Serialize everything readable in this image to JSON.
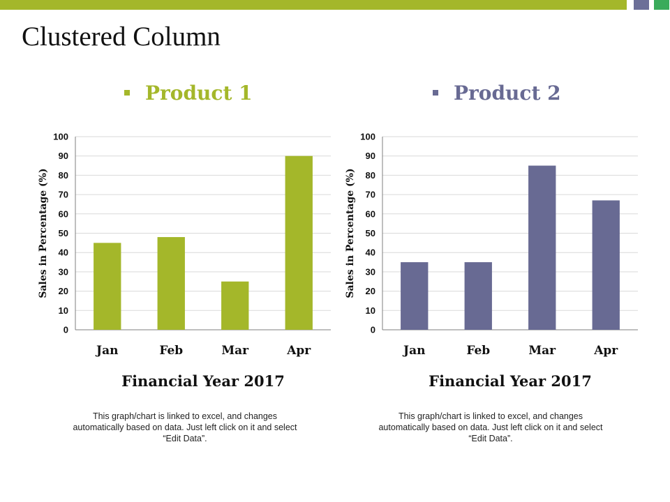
{
  "theme": {
    "product1_color": "#a4b72a",
    "product2_color": "#686a93",
    "accent_square_1": "#6c6f98",
    "accent_square_2": "#3aab5b",
    "top_bar_color": "#a4b72a"
  },
  "page": {
    "title": "Clustered Column"
  },
  "chart_data": [
    {
      "type": "bar",
      "legend": "Product 1",
      "categories": [
        "Jan",
        "Feb",
        "Mar",
        "Apr"
      ],
      "series": [
        {
          "name": "Product 1",
          "values": [
            45,
            48,
            25,
            90
          ]
        }
      ],
      "xlabel": "Financial Year 2017",
      "ylabel": "Sales in Percentage (%)",
      "ylim": [
        0,
        100
      ],
      "yticks": [
        0,
        10,
        20,
        30,
        40,
        50,
        60,
        70,
        80,
        90,
        100
      ],
      "grid": true,
      "note": "This graph/chart is linked to excel, and changes automatically based on data. Just left click on it and select “Edit Data”."
    },
    {
      "type": "bar",
      "legend": "Product 2",
      "categories": [
        "Jan",
        "Feb",
        "Mar",
        "Apr"
      ],
      "series": [
        {
          "name": "Product 2",
          "values": [
            35,
            35,
            85,
            67
          ]
        }
      ],
      "xlabel": "Financial Year 2017",
      "ylabel": "Sales in Percentage (%)",
      "ylim": [
        0,
        100
      ],
      "yticks": [
        0,
        10,
        20,
        30,
        40,
        50,
        60,
        70,
        80,
        90,
        100
      ],
      "grid": true,
      "note": "This graph/chart is linked to excel, and changes automatically based on data. Just left click on it and select “Edit Data”."
    }
  ]
}
